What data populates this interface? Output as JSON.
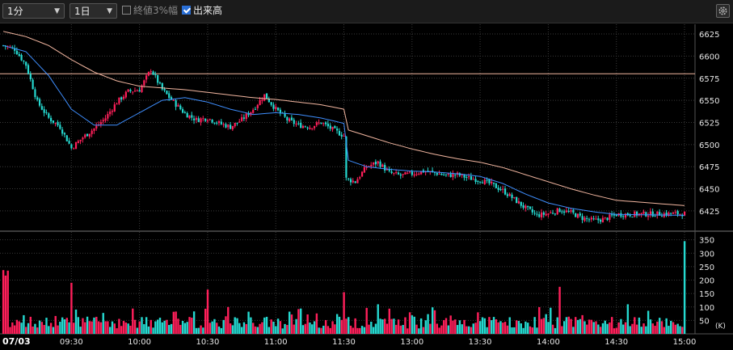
{
  "toolbar": {
    "interval": "1分",
    "period": "1日",
    "limit_label": "終値3%幅",
    "limit_checked": false,
    "volume_label": "出来高",
    "volume_checked": true,
    "dropdown_arrow": "▼"
  },
  "colors": {
    "up": "#ff1f5a",
    "down": "#25d9d0",
    "ma_short": "#3f8fff",
    "ma_long": "#f2b6a0",
    "ref_line": "#f2b6a0",
    "grid": "#3a3a3a"
  },
  "chart_data": [
    {
      "type": "candlestick",
      "title": "",
      "x_start": "09:00",
      "x_end": "15:00",
      "date_label": "07/03",
      "xticks": [
        "07/03",
        "09:30",
        "10:00",
        "10:30",
        "11:00",
        "11:30",
        "13:00",
        "13:30",
        "14:00",
        "14:30",
        "15:00"
      ],
      "yticks": [
        6425,
        6450,
        6475,
        6500,
        6525,
        6550,
        6575,
        6600,
        6625
      ],
      "ylim": [
        6403,
        6636
      ],
      "reference_line": 6580,
      "series": [
        {
          "role": "price",
          "points": [
            [
              "09:00",
              6612
            ],
            [
              "09:05",
              6608
            ],
            [
              "09:10",
              6590
            ],
            [
              "09:15",
              6548
            ],
            [
              "09:20",
              6530
            ],
            [
              "09:25",
              6520
            ],
            [
              "09:30",
              6496
            ],
            [
              "09:35",
              6508
            ],
            [
              "09:40",
              6518
            ],
            [
              "09:45",
              6530
            ],
            [
              "09:50",
              6548
            ],
            [
              "09:55",
              6560
            ],
            [
              "10:00",
              6562
            ],
            [
              "10:05",
              6585
            ],
            [
              "10:10",
              6562
            ],
            [
              "10:15",
              6548
            ],
            [
              "10:20",
              6535
            ],
            [
              "10:25",
              6528
            ],
            [
              "10:30",
              6530
            ],
            [
              "10:35",
              6524
            ],
            [
              "10:40",
              6520
            ],
            [
              "10:45",
              6528
            ],
            [
              "10:50",
              6540
            ],
            [
              "10:55",
              6556
            ],
            [
              "11:00",
              6540
            ],
            [
              "11:05",
              6528
            ],
            [
              "11:10",
              6522
            ],
            [
              "11:15",
              6520
            ],
            [
              "11:20",
              6525
            ],
            [
              "11:25",
              6517
            ],
            [
              "11:30",
              6510
            ],
            [
              "11:35",
              6498
            ],
            [
              "11:40",
              6482
            ],
            [
              "11:45",
              6492
            ],
            [
              "11:50",
              6488
            ],
            [
              "11:55",
              6475
            ],
            [
              "12:30",
              6462
            ],
            [
              "12:35",
              6458
            ],
            [
              "12:40",
              6475
            ],
            [
              "12:45",
              6480
            ],
            [
              "12:50",
              6468
            ],
            [
              "12:55",
              6465
            ],
            [
              "13:00",
              6467
            ],
            [
              "13:05",
              6470
            ],
            [
              "13:10",
              6468
            ],
            [
              "13:15",
              6465
            ],
            [
              "13:20",
              6466
            ],
            [
              "13:25",
              6462
            ],
            [
              "13:30",
              6460
            ],
            [
              "13:35",
              6455
            ],
            [
              "13:40",
              6448
            ],
            [
              "13:45",
              6438
            ],
            [
              "13:50",
              6428
            ],
            [
              "13:55",
              6420
            ],
            [
              "14:00",
              6422
            ],
            [
              "14:05",
              6426
            ],
            [
              "14:10",
              6423
            ],
            [
              "14:15",
              6417
            ],
            [
              "14:20",
              6414
            ],
            [
              "14:25",
              6416
            ],
            [
              "14:30",
              6421
            ],
            [
              "15:00",
              6422
            ]
          ]
        },
        {
          "role": "ma_short",
          "points": [
            [
              "09:00",
              6612
            ],
            [
              "09:10",
              6605
            ],
            [
              "09:20",
              6578
            ],
            [
              "09:30",
              6540
            ],
            [
              "09:40",
              6522
            ],
            [
              "09:50",
              6522
            ],
            [
              "10:00",
              6536
            ],
            [
              "10:10",
              6550
            ],
            [
              "10:20",
              6553
            ],
            [
              "10:30",
              6548
            ],
            [
              "10:40",
              6540
            ],
            [
              "10:50",
              6534
            ],
            [
              "11:00",
              6536
            ],
            [
              "11:10",
              6534
            ],
            [
              "11:20",
              6530
            ],
            [
              "11:30",
              6524
            ],
            [
              "11:40",
              6512
            ],
            [
              "11:50",
              6500
            ],
            [
              "12:30",
              6484
            ],
            [
              "12:40",
              6475
            ],
            [
              "12:50",
              6472
            ],
            [
              "13:00",
              6470
            ],
            [
              "13:10",
              6469
            ],
            [
              "13:20",
              6467
            ],
            [
              "13:30",
              6464
            ],
            [
              "13:40",
              6456
            ],
            [
              "13:50",
              6444
            ],
            [
              "14:00",
              6434
            ],
            [
              "14:10",
              6428
            ],
            [
              "14:20",
              6424
            ],
            [
              "14:30",
              6421
            ],
            [
              "15:00",
              6420
            ]
          ]
        },
        {
          "role": "ma_long",
          "points": [
            [
              "09:00",
              6628
            ],
            [
              "09:10",
              6622
            ],
            [
              "09:20",
              6612
            ],
            [
              "09:30",
              6596
            ],
            [
              "09:40",
              6582
            ],
            [
              "09:50",
              6572
            ],
            [
              "10:00",
              6566
            ],
            [
              "10:10",
              6564
            ],
            [
              "10:20",
              6562
            ],
            [
              "10:30",
              6559
            ],
            [
              "10:40",
              6556
            ],
            [
              "10:50",
              6553
            ],
            [
              "11:00",
              6551
            ],
            [
              "11:10",
              6548
            ],
            [
              "11:20",
              6545
            ],
            [
              "11:30",
              6540
            ],
            [
              "11:40",
              6533
            ],
            [
              "11:50",
              6526
            ],
            [
              "12:30",
              6518
            ],
            [
              "12:40",
              6510
            ],
            [
              "12:50",
              6502
            ],
            [
              "13:00",
              6495
            ],
            [
              "13:10",
              6489
            ],
            [
              "13:20",
              6484
            ],
            [
              "13:30",
              6480
            ],
            [
              "13:40",
              6474
            ],
            [
              "13:50",
              6466
            ],
            [
              "14:00",
              6458
            ],
            [
              "14:10",
              6450
            ],
            [
              "14:20",
              6443
            ],
            [
              "14:30",
              6437
            ],
            [
              "15:00",
              6431
            ]
          ]
        }
      ]
    },
    {
      "type": "bar",
      "title": "",
      "yticks": [
        50,
        100,
        150,
        200,
        250,
        300,
        350
      ],
      "ylim": [
        0,
        370
      ],
      "unit": "(K)",
      "notable": [
        [
          "09:30",
          190
        ],
        [
          "10:30",
          165
        ],
        [
          "11:35",
          155
        ],
        [
          "12:45",
          110
        ],
        [
          "14:05",
          175
        ],
        [
          "14:35",
          110
        ],
        [
          "15:00",
          345
        ]
      ],
      "typical_range": [
        20,
        100
      ]
    }
  ]
}
